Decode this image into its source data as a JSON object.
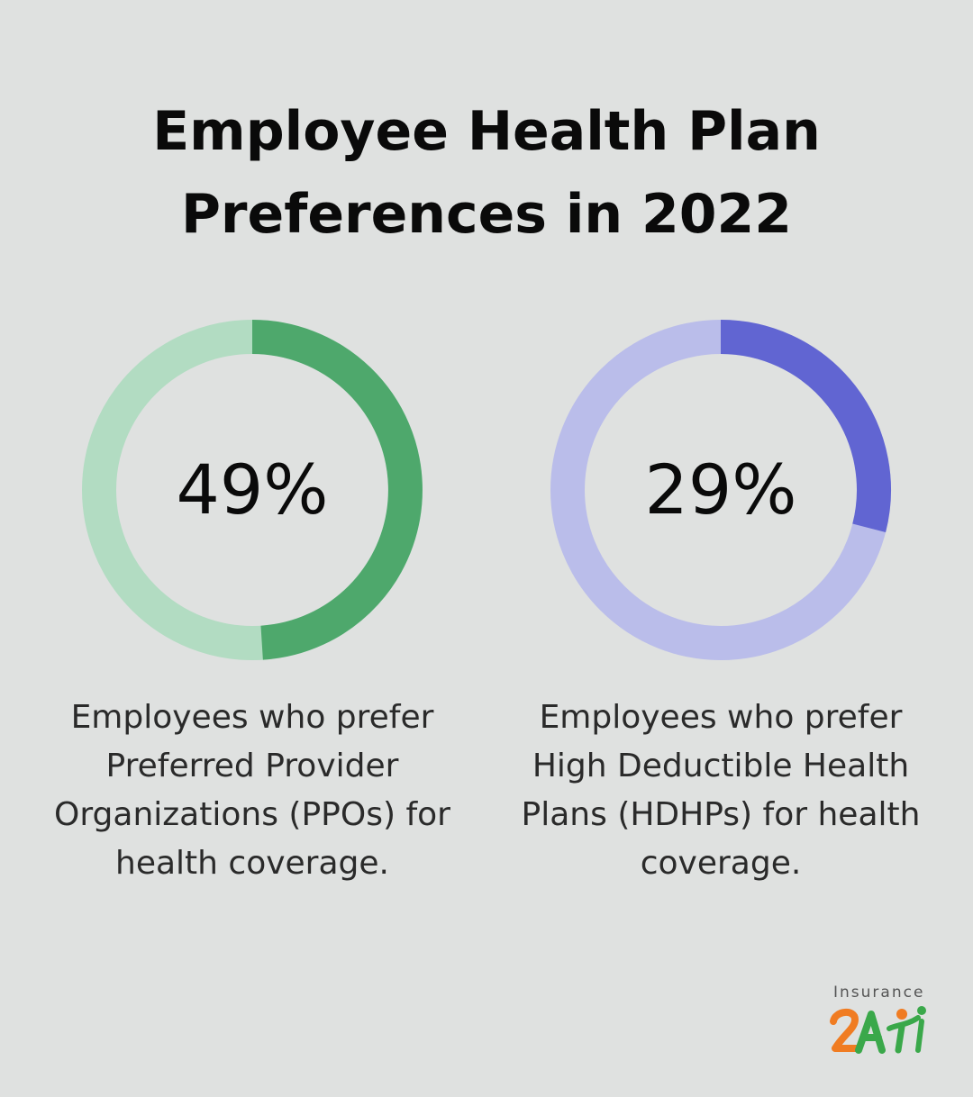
{
  "title": {
    "line1": "Employee Health Plan",
    "line2": "Preferences in 2022"
  },
  "chart_data": [
    {
      "type": "pie",
      "variant": "donut",
      "value": 49,
      "value_label": "49%",
      "caption_lines": [
        "Employees who prefer",
        "Preferred Provider",
        "Organizations (PPOs) for",
        "health coverage."
      ],
      "colors": {
        "fill": "#4ea86c",
        "track": "#b2dcc2"
      }
    },
    {
      "type": "pie",
      "variant": "donut",
      "value": 29,
      "value_label": "29%",
      "caption_lines": [
        "Employees who prefer",
        "High Deductible Health",
        "Plans (HDHPs) for health",
        "coverage."
      ],
      "colors": {
        "fill": "#6165d2",
        "track": "#babdea"
      }
    }
  ],
  "logo": {
    "text": "Insurance",
    "icon": "insurance2ai-logo-icon"
  }
}
